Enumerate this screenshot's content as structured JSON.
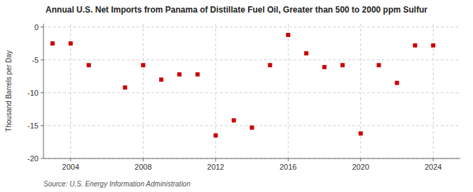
{
  "chart_data": {
    "type": "scatter",
    "title": "Annual U.S. Net Imports from Panama of Distillate Fuel Oil, Greater than 500 to 2000 ppm Sulfur",
    "y_label": "Thousand Barrels per Day",
    "annotations": [
      "Source: U.S. Energy Information Administration"
    ],
    "x": [
      2003,
      2004,
      2005,
      2007,
      2008,
      2009,
      2010,
      2011,
      2012,
      2013,
      2014,
      2015,
      2016,
      2017,
      2018,
      2019,
      2020,
      2021,
      2022,
      2023,
      2024
    ],
    "values": [
      -2.5,
      -2.5,
      -5.8,
      -9.2,
      -5.8,
      -8.0,
      -7.2,
      -7.2,
      -16.5,
      -14.2,
      -15.3,
      -5.8,
      -1.2,
      -4.0,
      -6.1,
      -5.8,
      -16.2,
      -5.8,
      -8.5,
      -2.8,
      -2.8
    ],
    "color": "#cc0000",
    "marker": "square",
    "xlim": [
      2002.5,
      2025.5
    ],
    "ylim": [
      -20,
      0.5
    ],
    "xticks": [
      2004,
      2008,
      2012,
      2016,
      2020,
      2024
    ],
    "yticks": [
      0,
      -5,
      -10,
      -15,
      -20
    ],
    "grid": true
  }
}
